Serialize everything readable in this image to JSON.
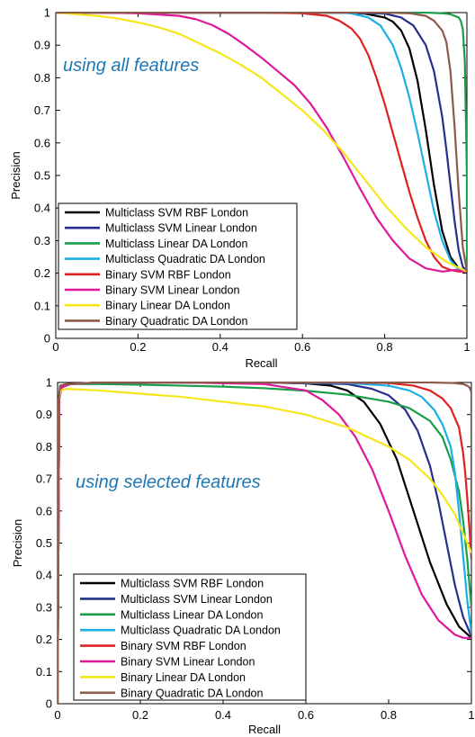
{
  "chart_data": [
    {
      "type": "line",
      "annotation": "using all features",
      "xlabel": "Recall",
      "ylabel": "Precision",
      "xlim": [
        0,
        1
      ],
      "ylim": [
        0,
        1
      ],
      "x_ticks": [
        "0",
        "0.2",
        "0.4",
        "0.6",
        "0.8",
        "1"
      ],
      "y_ticks": [
        "0",
        "0.1",
        "0.2",
        "0.3",
        "0.4",
        "0.5",
        "0.6",
        "0.7",
        "0.8",
        "0.9",
        "1"
      ],
      "grid": false,
      "legend_position": "bottom-left",
      "series": [
        {
          "name": "Multiclass SVM RBF London",
          "color": "#000000",
          "x": [
            0,
            0.1,
            0.2,
            0.3,
            0.4,
            0.5,
            0.6,
            0.7,
            0.75,
            0.8,
            0.82,
            0.84,
            0.86,
            0.88,
            0.9,
            0.92,
            0.94,
            0.96,
            0.98,
            1.0
          ],
          "y": [
            1,
            1,
            1,
            1,
            1,
            1,
            1,
            1,
            0.997,
            0.985,
            0.972,
            0.945,
            0.89,
            0.79,
            0.64,
            0.47,
            0.33,
            0.25,
            0.215,
            0.205
          ]
        },
        {
          "name": "Multiclass SVM Linear London",
          "color": "#262f8c",
          "x": [
            0,
            0.1,
            0.2,
            0.3,
            0.4,
            0.5,
            0.6,
            0.7,
            0.8,
            0.84,
            0.87,
            0.9,
            0.92,
            0.94,
            0.95,
            0.96,
            0.97,
            0.98,
            0.99,
            1.0
          ],
          "y": [
            1,
            1,
            1,
            1,
            1,
            1,
            1,
            1,
            0.997,
            0.985,
            0.96,
            0.9,
            0.82,
            0.68,
            0.58,
            0.47,
            0.36,
            0.27,
            0.22,
            0.205
          ]
        },
        {
          "name": "Multiclass Linear DA London",
          "color": "#1a9e4a",
          "x": [
            0,
            0.2,
            0.4,
            0.6,
            0.8,
            0.9,
            0.94,
            0.96,
            0.97,
            0.98,
            0.985,
            0.99,
            0.995,
            1.0,
            1.0
          ],
          "y": [
            1,
            1,
            1,
            1,
            1,
            1,
            0.998,
            0.995,
            0.99,
            0.985,
            0.975,
            0.95,
            0.85,
            0.5,
            0.205
          ]
        },
        {
          "name": "Multiclass Quadratic DA London",
          "color": "#1ab0e6",
          "x": [
            0,
            0.1,
            0.2,
            0.3,
            0.4,
            0.5,
            0.6,
            0.7,
            0.72,
            0.76,
            0.79,
            0.82,
            0.84,
            0.86,
            0.88,
            0.9,
            0.92,
            0.94,
            0.96,
            0.98,
            1.0
          ],
          "y": [
            1,
            1,
            1,
            1,
            1,
            1,
            1,
            1,
            0.997,
            0.985,
            0.96,
            0.9,
            0.83,
            0.74,
            0.63,
            0.51,
            0.39,
            0.3,
            0.24,
            0.21,
            0.205
          ]
        },
        {
          "name": "Binary SVM RBF London",
          "color": "#e02020",
          "x": [
            0,
            0.1,
            0.2,
            0.3,
            0.4,
            0.5,
            0.6,
            0.66,
            0.69,
            0.72,
            0.74,
            0.76,
            0.78,
            0.8,
            0.82,
            0.84,
            0.86,
            0.88,
            0.9,
            0.92,
            0.94,
            0.96,
            0.98,
            1.0
          ],
          "y": [
            1,
            1,
            1,
            1,
            1,
            1,
            0.998,
            0.99,
            0.975,
            0.95,
            0.92,
            0.87,
            0.8,
            0.72,
            0.63,
            0.54,
            0.45,
            0.37,
            0.3,
            0.25,
            0.22,
            0.21,
            0.205,
            0.205
          ]
        },
        {
          "name": "Binary SVM Linear London",
          "color": "#e0189a",
          "x": [
            0,
            0.1,
            0.2,
            0.3,
            0.34,
            0.38,
            0.42,
            0.46,
            0.5,
            0.54,
            0.58,
            0.62,
            0.66,
            0.7,
            0.74,
            0.78,
            0.82,
            0.86,
            0.9,
            0.94,
            0.97,
            1.0
          ],
          "y": [
            1,
            1,
            0.998,
            0.99,
            0.98,
            0.962,
            0.935,
            0.9,
            0.862,
            0.82,
            0.778,
            0.72,
            0.645,
            0.555,
            0.46,
            0.37,
            0.3,
            0.245,
            0.215,
            0.205,
            0.21,
            0.205
          ]
        },
        {
          "name": "Binary Linear DA London",
          "color": "#f5e61a",
          "x": [
            0,
            0.05,
            0.1,
            0.15,
            0.2,
            0.25,
            0.3,
            0.35,
            0.4,
            0.45,
            0.5,
            0.55,
            0.6,
            0.65,
            0.7,
            0.75,
            0.8,
            0.85,
            0.9,
            0.95,
            1.0
          ],
          "y": [
            1,
            0.995,
            0.99,
            0.982,
            0.97,
            0.955,
            0.935,
            0.905,
            0.875,
            0.84,
            0.8,
            0.75,
            0.7,
            0.64,
            0.57,
            0.49,
            0.41,
            0.34,
            0.28,
            0.235,
            0.205
          ]
        },
        {
          "name": "Binary Quadratic DA London",
          "color": "#8b5a4a",
          "x": [
            0,
            0.2,
            0.4,
            0.6,
            0.8,
            0.86,
            0.9,
            0.92,
            0.94,
            0.95,
            0.96,
            0.97,
            0.98,
            0.99,
            1.0
          ],
          "y": [
            1,
            1,
            1,
            1,
            1,
            0.998,
            0.99,
            0.975,
            0.945,
            0.91,
            0.82,
            0.65,
            0.45,
            0.28,
            0.205
          ]
        }
      ]
    },
    {
      "type": "line",
      "annotation": "using selected features",
      "xlabel": "Recall",
      "ylabel": "Precision",
      "xlim": [
        0,
        1
      ],
      "ylim": [
        0,
        1
      ],
      "x_ticks": [
        "0",
        "0.2",
        "0.4",
        "0.6",
        "0.8",
        "1"
      ],
      "y_ticks": [
        "0",
        "0.1",
        "0.2",
        "0.3",
        "0.4",
        "0.5",
        "0.6",
        "0.7",
        "0.8",
        "0.9",
        "1"
      ],
      "grid": false,
      "legend_position": "bottom-left",
      "series": [
        {
          "name": "Multiclass SVM RBF London",
          "color": "#000000",
          "x": [
            0,
            0.004,
            0.01,
            0.03,
            0.1,
            0.3,
            0.5,
            0.6,
            0.66,
            0.7,
            0.74,
            0.78,
            0.82,
            0.86,
            0.9,
            0.94,
            0.97,
            1.0
          ],
          "y": [
            0,
            0.95,
            0.985,
            0.995,
            1,
            1,
            1,
            0.997,
            0.99,
            0.975,
            0.94,
            0.87,
            0.76,
            0.6,
            0.44,
            0.31,
            0.24,
            0.205
          ]
        },
        {
          "name": "Multiclass SVM Linear London",
          "color": "#262f8c",
          "x": [
            0,
            0.004,
            0.01,
            0.03,
            0.1,
            0.3,
            0.5,
            0.7,
            0.76,
            0.8,
            0.84,
            0.87,
            0.9,
            0.92,
            0.94,
            0.96,
            0.98,
            1.0
          ],
          "y": [
            0,
            0.95,
            0.985,
            0.995,
            1,
            1,
            1,
            0.995,
            0.98,
            0.96,
            0.915,
            0.85,
            0.74,
            0.63,
            0.5,
            0.37,
            0.27,
            0.21
          ]
        },
        {
          "name": "Multiclass Linear DA London",
          "color": "#1a9e4a",
          "x": [
            0,
            0.004,
            0.01,
            0.03,
            0.1,
            0.2,
            0.3,
            0.4,
            0.5,
            0.6,
            0.7,
            0.8,
            0.85,
            0.9,
            0.93,
            0.95,
            0.97,
            0.98,
            0.99,
            1.0
          ],
          "y": [
            0,
            0.95,
            0.985,
            0.995,
            0.995,
            0.993,
            0.99,
            0.987,
            0.982,
            0.974,
            0.962,
            0.94,
            0.92,
            0.88,
            0.83,
            0.76,
            0.66,
            0.57,
            0.45,
            0.3
          ]
        },
        {
          "name": "Multiclass Quadratic DA London",
          "color": "#1ab0e6",
          "x": [
            0,
            0.004,
            0.01,
            0.03,
            0.1,
            0.3,
            0.5,
            0.7,
            0.8,
            0.85,
            0.88,
            0.91,
            0.93,
            0.95,
            0.96,
            0.97,
            0.98,
            0.99,
            1.0
          ],
          "y": [
            0,
            0.95,
            0.985,
            0.995,
            1,
            1,
            1,
            0.998,
            0.99,
            0.975,
            0.955,
            0.915,
            0.87,
            0.8,
            0.72,
            0.6,
            0.46,
            0.32,
            0.22
          ]
        },
        {
          "name": "Binary SVM RBF London",
          "color": "#e02020",
          "x": [
            0,
            0.004,
            0.01,
            0.03,
            0.1,
            0.3,
            0.5,
            0.7,
            0.8,
            0.86,
            0.9,
            0.93,
            0.95,
            0.97,
            0.98,
            0.985,
            0.99,
            0.995,
            1.0
          ],
          "y": [
            0,
            0.95,
            0.985,
            0.995,
            1,
            1,
            1,
            1,
            0.998,
            0.99,
            0.975,
            0.95,
            0.92,
            0.86,
            0.78,
            0.72,
            0.64,
            0.55,
            0.45
          ]
        },
        {
          "name": "Binary SVM Linear London",
          "color": "#e0189a",
          "x": [
            0,
            0.004,
            0.01,
            0.03,
            0.1,
            0.3,
            0.5,
            0.6,
            0.64,
            0.68,
            0.72,
            0.76,
            0.8,
            0.84,
            0.88,
            0.92,
            0.96,
            0.98,
            1.0
          ],
          "y": [
            0,
            0.95,
            0.985,
            0.995,
            1,
            1,
            0.995,
            0.975,
            0.945,
            0.9,
            0.83,
            0.73,
            0.6,
            0.46,
            0.34,
            0.26,
            0.215,
            0.205,
            0.205
          ]
        },
        {
          "name": "Binary Linear DA London",
          "color": "#f5e61a",
          "x": [
            0,
            0.003,
            0.008,
            0.02,
            0.1,
            0.2,
            0.3,
            0.4,
            0.5,
            0.6,
            0.7,
            0.8,
            0.85,
            0.9,
            0.93,
            0.96,
            0.98,
            1.0
          ],
          "y": [
            0,
            0.95,
            0.975,
            0.98,
            0.975,
            0.965,
            0.955,
            0.94,
            0.925,
            0.9,
            0.86,
            0.8,
            0.76,
            0.7,
            0.65,
            0.59,
            0.53,
            0.47
          ]
        },
        {
          "name": "Binary Quadratic DA London",
          "color": "#8b5a4a",
          "x": [
            0,
            0.003,
            0.006,
            0.02,
            0.1,
            0.3,
            0.5,
            0.7,
            0.9,
            0.96,
            0.98,
            0.99,
            0.995,
            1.0,
            1.0
          ],
          "y": [
            0,
            0.95,
            0.99,
            0.995,
            1,
            1,
            1,
            1,
            1,
            0.998,
            0.995,
            0.99,
            0.985,
            0.97,
            0.5
          ]
        }
      ]
    }
  ]
}
